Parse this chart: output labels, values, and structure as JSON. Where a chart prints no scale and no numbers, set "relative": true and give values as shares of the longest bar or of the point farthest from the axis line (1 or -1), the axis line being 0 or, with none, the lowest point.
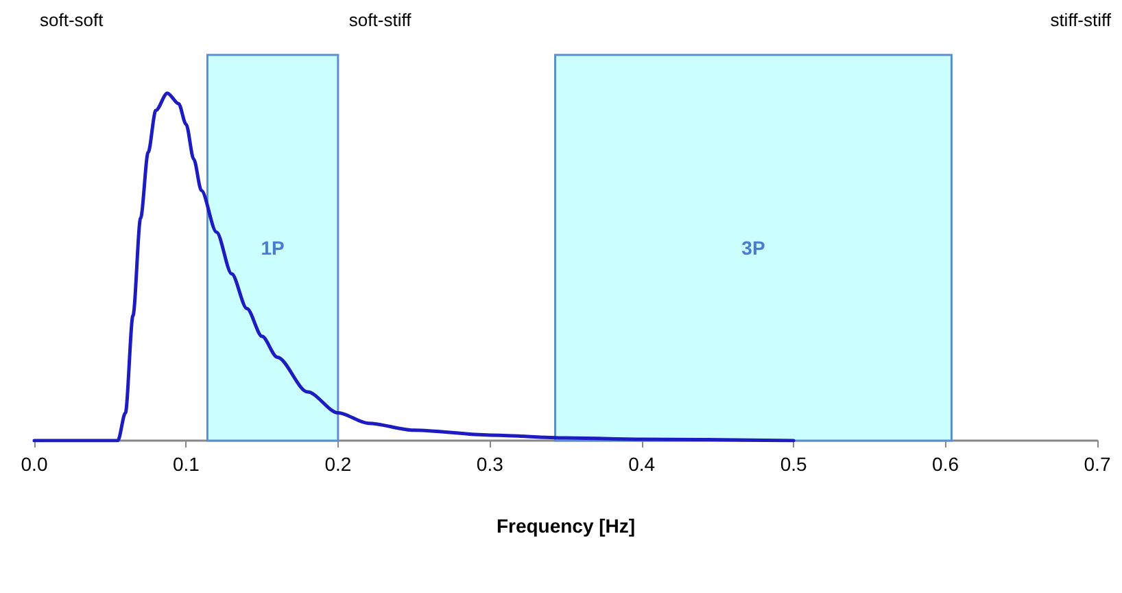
{
  "chart_data": {
    "type": "line",
    "xlabel": "Frequency [Hz]",
    "relative": true,
    "x": [
      0,
      0.05,
      0.055,
      0.06,
      0.065,
      0.07,
      0.075,
      0.08,
      0.0876,
      0.095,
      0.1,
      0.105,
      0.11,
      0.12,
      0.13,
      0.14,
      0.15,
      0.16,
      0.18,
      0.2,
      0.22,
      0.25,
      0.3,
      0.35,
      0.4,
      0.5
    ],
    "series": [
      {
        "color": "#1c1cc0",
        "values": [
          0,
          0,
          0,
          0.08,
          0.36,
          0.64,
          0.83,
          0.95,
          1,
          0.97,
          0.91,
          0.81,
          0.72,
          0.6,
          0.48,
          0.38,
          0.3,
          0.24,
          0.14,
          0.08,
          0.05,
          0.03,
          0.016,
          0.008,
          0.004,
          0
        ]
      }
    ],
    "xlim": [
      0,
      0.7
    ],
    "xticks": [
      {
        "value": 0,
        "label": "0.0"
      },
      {
        "value": 0.1,
        "label": "0.1"
      },
      {
        "value": 0.2,
        "label": "0.2"
      },
      {
        "value": 0.3,
        "label": "0.3"
      },
      {
        "value": 0.4,
        "label": "0.4"
      },
      {
        "value": 0.5,
        "label": "0.5"
      },
      {
        "value": 0.6,
        "label": "0.6"
      },
      {
        "value": 0.7,
        "label": "0.7"
      }
    ],
    "bands": [
      {
        "axis": "x",
        "from": 0.114,
        "to": 0.2,
        "label": "1P",
        "color": "#ccffff"
      },
      {
        "axis": "x",
        "from": 0.343,
        "to": 0.604,
        "label": "3P",
        "color": "#ccffff"
      }
    ],
    "annotations": [
      "soft-soft",
      "soft-stiff",
      "stiff-stiff"
    ],
    "marker": "none",
    "line_style": "solid"
  }
}
